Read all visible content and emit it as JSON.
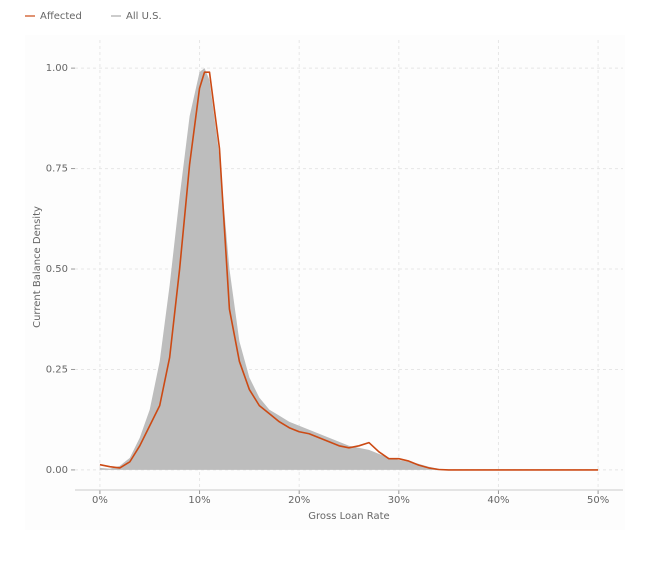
{
  "chart_data": {
    "type": "area_line",
    "x_label": "Gross Loan Rate",
    "y_label": "Current Balance Density",
    "x": [
      0,
      1,
      2,
      3,
      4,
      5,
      6,
      7,
      8,
      9,
      10,
      10.5,
      11,
      12,
      13,
      14,
      15,
      16,
      17,
      18,
      19,
      20,
      21,
      22,
      23,
      24,
      25,
      26,
      27,
      28,
      29,
      30,
      31,
      32,
      33,
      34,
      35,
      40,
      45,
      50
    ],
    "series": [
      {
        "name": "All U.S.",
        "color": "#bdbdbd",
        "legend_color": "#aaaaaa",
        "style": "area",
        "values": [
          0.005,
          0.003,
          0.01,
          0.03,
          0.08,
          0.15,
          0.27,
          0.46,
          0.68,
          0.88,
          0.99,
          1.0,
          0.97,
          0.78,
          0.5,
          0.32,
          0.23,
          0.18,
          0.15,
          0.135,
          0.12,
          0.11,
          0.1,
          0.09,
          0.08,
          0.07,
          0.06,
          0.055,
          0.05,
          0.04,
          0.03,
          0.025,
          0.02,
          0.015,
          0.008,
          0.003,
          0.001,
          0,
          0,
          0
        ]
      },
      {
        "name": "Affected",
        "color": "#cc4a14",
        "legend_color": "#cc4a14",
        "style": "line",
        "values": [
          0.013,
          0.008,
          0.005,
          0.02,
          0.06,
          0.11,
          0.16,
          0.28,
          0.5,
          0.76,
          0.95,
          0.99,
          0.99,
          0.8,
          0.4,
          0.27,
          0.2,
          0.16,
          0.14,
          0.12,
          0.105,
          0.095,
          0.09,
          0.08,
          0.07,
          0.06,
          0.055,
          0.06,
          0.068,
          0.045,
          0.028,
          0.028,
          0.022,
          0.012,
          0.005,
          0.001,
          0,
          0,
          0,
          0
        ]
      }
    ],
    "xlim": [
      -2.5,
      52.5
    ],
    "ylim": [
      -0.05,
      1.07
    ],
    "xticks": [
      {
        "value": 0,
        "label": "0%"
      },
      {
        "value": 10,
        "label": "10%"
      },
      {
        "value": 20,
        "label": "20%"
      },
      {
        "value": 30,
        "label": "30%"
      },
      {
        "value": 40,
        "label": "40%"
      },
      {
        "value": 50,
        "label": "50%"
      }
    ],
    "yticks": [
      {
        "value": 0,
        "label": "0.00"
      },
      {
        "value": 0.25,
        "label": "0.25"
      },
      {
        "value": 0.5,
        "label": "0.50"
      },
      {
        "value": 0.75,
        "label": "0.75"
      },
      {
        "value": 1,
        "label": "1.00"
      }
    ],
    "grid": true
  }
}
